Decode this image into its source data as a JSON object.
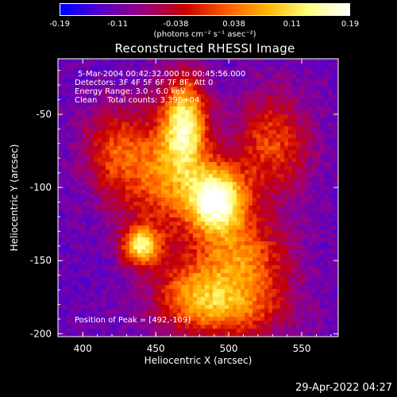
{
  "chart_data": {
    "type": "heatmap",
    "title": "Reconstructed RHESSI Image",
    "xlabel": "Heliocentric X (arcsec)",
    "ylabel": "Heliocentric Y (arcsec)",
    "xlim": [
      383,
      575
    ],
    "ylim": [
      -202,
      -12
    ],
    "x_ticks": [
      400,
      450,
      500,
      550
    ],
    "y_ticks": [
      -50,
      -100,
      -150,
      -200
    ],
    "colorbar": {
      "label_html": "(photons cm⁻² s⁻¹ asec⁻²)",
      "ticks": [
        "-0.19",
        "-0.11",
        "-0.038",
        "0.038",
        "0.11",
        "0.19"
      ],
      "range": [
        -0.19,
        0.19
      ],
      "colormap": [
        "#0000ff",
        "#5a00c8",
        "#9a0080",
        "#c80000",
        "#ff5a00",
        "#ffb400",
        "#ffff80",
        "#ffffff"
      ]
    },
    "annotations": [
      "5-Mar-2004 00:42:32.000 to 00:45:56.000",
      "Detectors: 3F 4F 5F 6F 7F 8F, Att 0",
      "Energy Range: 3.0 - 6.0 keV",
      "Clean    Total counts: 3.39E+04"
    ],
    "peak_label": "Position of Peak = [492,-109]",
    "peak": [
      492,
      -109
    ],
    "sources": [
      {
        "x": 492,
        "y": -109,
        "amp": 1.0,
        "sx": 14,
        "sy": 16
      },
      {
        "x": 470,
        "y": -55,
        "amp": 0.75,
        "sx": 10,
        "sy": 22
      },
      {
        "x": 440,
        "y": -140,
        "amp": 0.8,
        "sx": 9,
        "sy": 9
      },
      {
        "x": 455,
        "y": -90,
        "amp": 0.55,
        "sx": 22,
        "sy": 30
      },
      {
        "x": 510,
        "y": -150,
        "amp": 0.55,
        "sx": 22,
        "sy": 20
      },
      {
        "x": 530,
        "y": -70,
        "amp": 0.45,
        "sx": 18,
        "sy": 25
      },
      {
        "x": 500,
        "y": -185,
        "amp": 0.45,
        "sx": 28,
        "sy": 14
      },
      {
        "x": 420,
        "y": -75,
        "amp": 0.35,
        "sx": 14,
        "sy": 20
      },
      {
        "x": 475,
        "y": -170,
        "amp": 0.4,
        "sx": 20,
        "sy": 16
      }
    ]
  },
  "footer": {
    "timestamp": "29-Apr-2022 04:27"
  }
}
